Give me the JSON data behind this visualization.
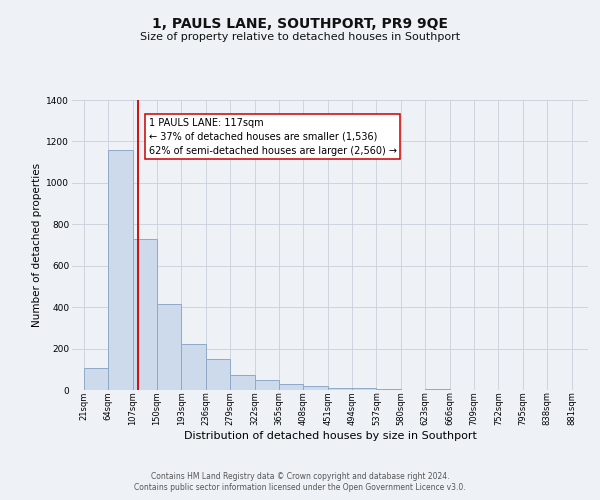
{
  "title": "1, PAULS LANE, SOUTHPORT, PR9 9QE",
  "subtitle": "Size of property relative to detached houses in Southport",
  "xlabel": "Distribution of detached houses by size in Southport",
  "ylabel": "Number of detached properties",
  "bar_left_edges": [
    21,
    64,
    107,
    150,
    193,
    236,
    279,
    322,
    365,
    408,
    451,
    494,
    537,
    580,
    623,
    666,
    709,
    752,
    795,
    838
  ],
  "bar_heights": [
    107,
    1160,
    730,
    415,
    220,
    148,
    73,
    50,
    30,
    18,
    12,
    8,
    5,
    0,
    3,
    0,
    0,
    0,
    0,
    0
  ],
  "bin_width": 43,
  "tick_labels": [
    "21sqm",
    "64sqm",
    "107sqm",
    "150sqm",
    "193sqm",
    "236sqm",
    "279sqm",
    "322sqm",
    "365sqm",
    "408sqm",
    "451sqm",
    "494sqm",
    "537sqm",
    "580sqm",
    "623sqm",
    "666sqm",
    "709sqm",
    "752sqm",
    "795sqm",
    "838sqm",
    "881sqm"
  ],
  "tick_positions": [
    21,
    64,
    107,
    150,
    193,
    236,
    279,
    322,
    365,
    408,
    451,
    494,
    537,
    580,
    623,
    666,
    709,
    752,
    795,
    838,
    881
  ],
  "bar_color": "#ccdaeb",
  "bar_edge_color": "#8eaac8",
  "vline_x": 117,
  "vline_color": "#cc0000",
  "annotation_line1": "1 PAULS LANE: 117sqm",
  "annotation_line2": "← 37% of detached houses are smaller (1,536)",
  "annotation_line3": "62% of semi-detached houses are larger (2,560) →",
  "annotation_box_color": "#ffffff",
  "annotation_box_edge_color": "#cc0000",
  "ylim": [
    0,
    1400
  ],
  "yticks": [
    0,
    200,
    400,
    600,
    800,
    1000,
    1200,
    1400
  ],
  "xlim_left": 0,
  "xlim_right": 910,
  "bg_color": "#eef2f7",
  "plot_bg_color": "#eef2f7",
  "grid_color": "#c8d0da",
  "footer_line1": "Contains HM Land Registry data © Crown copyright and database right 2024.",
  "footer_line2": "Contains public sector information licensed under the Open Government Licence v3.0.",
  "title_fontsize": 10,
  "subtitle_fontsize": 8,
  "ylabel_fontsize": 7.5,
  "xlabel_fontsize": 8,
  "tick_fontsize": 6,
  "footer_fontsize": 5.5,
  "annot_fontsize": 7
}
